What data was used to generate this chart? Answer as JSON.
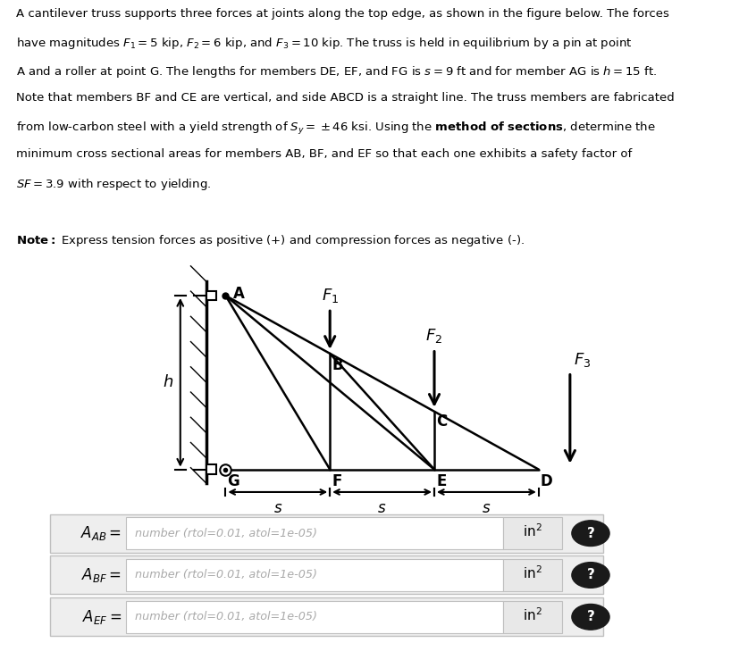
{
  "bg_color": "#ffffff",
  "truss_color": "#000000",
  "fs_body": 9.5,
  "fs_label": 11,
  "fs_force": 12,
  "text_lines": [
    "A cantilever truss supports three forces at joints along the top edge, as shown in the figure below. The forces",
    "have magnitudes $F_1 = 5$ kip, $F_2 = 6$ kip, and $F_3 = 10$ kip. The truss is held in equilibrium by a pin at point",
    "A and a roller at point G. The lengths for members DE, EF, and FG is $s = 9$ ft and for member AG is $h = 15$ ft.",
    "Note that members BF and CE are vertical, and side ABCD is a straight line. The truss members are fabricated",
    "from low-carbon steel with a yield strength of $S_y = \\pm46$ ksi. Using the \\textbf{method of sections}, determine the",
    "minimum cross sectional areas for members AB, BF, and EF so that each one exhibits a safety factor of",
    "$SF = 3.9$ with respect to yielding."
  ],
  "note_line": "\\textbf{Note:} Express tension forces as positive (+) and compression forces as negative (-).",
  "table_rows": [
    {
      "label": "$A_{AB} = $",
      "placeholder": "number (rtol=0.01, atol=1e-05)",
      "unit": "in$^2$"
    },
    {
      "label": "$A_{BF} = $",
      "placeholder": "number (rtol=0.01, atol=1e-05)",
      "unit": "in$^2$"
    },
    {
      "label": "$A_{EF} = $",
      "placeholder": "number (rtol=0.01, atol=1e-05)",
      "unit": "in$^2$"
    }
  ]
}
